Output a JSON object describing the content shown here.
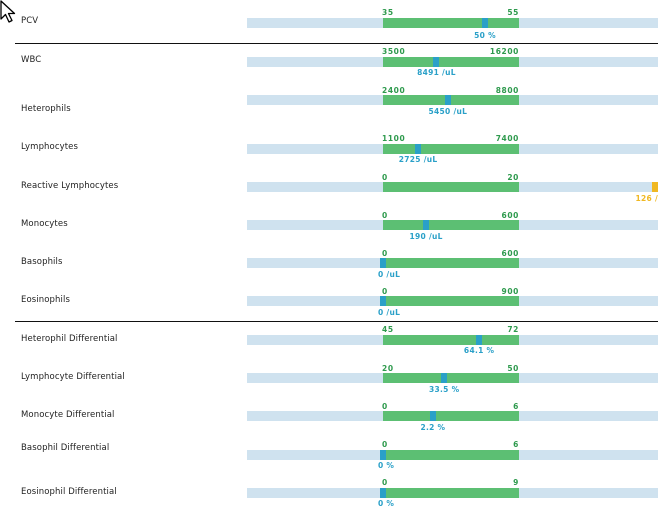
{
  "colors": {
    "track": "#cfe2ef",
    "normal_range": "#5cbf73",
    "limit_text": "#2e9a4d",
    "in_range_marker": "#2aa0c8",
    "out_of_range_marker": "#f0b822"
  },
  "rows": [
    {
      "label": "PCV",
      "low": "35",
      "high": "55",
      "value_text": "50 %",
      "fraction": 0.75,
      "status": "normal"
    },
    {
      "label": "WBC",
      "low": "3500",
      "high": "16200",
      "value_text": "8491 /uL",
      "fraction": 0.393,
      "status": "normal"
    },
    {
      "label": "Heterophils",
      "low": "2400",
      "high": "8800",
      "value_text": "5450 /uL",
      "fraction": 0.477,
      "status": "normal"
    },
    {
      "label": "Lymphocytes",
      "low": "1100",
      "high": "7400",
      "value_text": "2725 /uL",
      "fraction": 0.258,
      "status": "normal"
    },
    {
      "label": "Reactive Lymphocytes",
      "low": "0",
      "high": "20",
      "value_text": "126 /",
      "fraction": 6.3,
      "status": "high"
    },
    {
      "label": "Monocytes",
      "low": "0",
      "high": "600",
      "value_text": "190 /uL",
      "fraction": 0.317,
      "status": "normal"
    },
    {
      "label": "Basophils",
      "low": "0",
      "high": "600",
      "value_text": "0 /uL",
      "fraction": 0.0,
      "status": "normal"
    },
    {
      "label": "Eosinophils",
      "low": "0",
      "high": "900",
      "value_text": "0 /uL",
      "fraction": 0.0,
      "status": "normal"
    },
    {
      "label": "Heterophil Differential",
      "low": "45",
      "high": "72",
      "value_text": "64.1 %",
      "fraction": 0.707,
      "status": "normal"
    },
    {
      "label": "Lymphocyte Differential",
      "low": "20",
      "high": "50",
      "value_text": "33.5 %",
      "fraction": 0.45,
      "status": "normal"
    },
    {
      "label": "Monocyte Differential",
      "low": "0",
      "high": "6",
      "value_text": "2.2 %",
      "fraction": 0.367,
      "status": "normal"
    },
    {
      "label": "Basophil Differential",
      "low": "0",
      "high": "6",
      "value_text": "0 %",
      "fraction": 0.0,
      "status": "normal"
    },
    {
      "label": "Eosinophil Differential",
      "low": "0",
      "high": "9",
      "value_text": "0 %",
      "fraction": 0.0,
      "status": "normal"
    }
  ]
}
